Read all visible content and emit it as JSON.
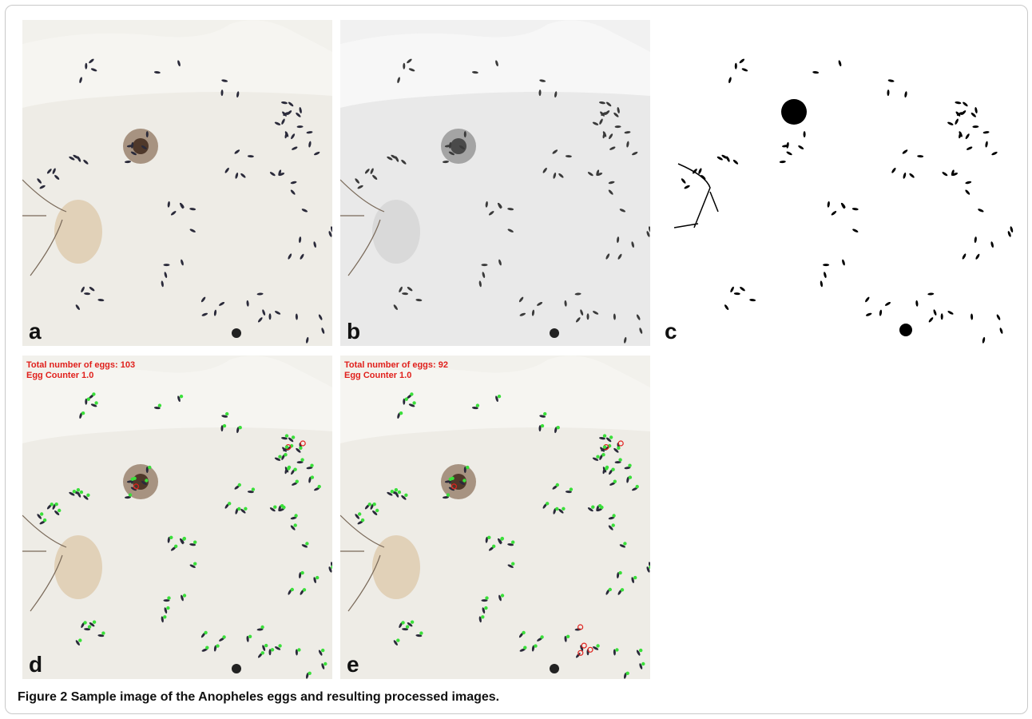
{
  "figure": {
    "label": "Figure 2",
    "caption": "Sample image of the Anopheles eggs and resulting processed images."
  },
  "panels": [
    {
      "id": "a",
      "letter": "a",
      "kind": "color-photo"
    },
    {
      "id": "b",
      "letter": "b",
      "kind": "grayscale"
    },
    {
      "id": "c",
      "letter": "c",
      "kind": "binary"
    },
    {
      "id": "d",
      "letter": "d",
      "kind": "annotated",
      "overlay_line1": "Total number of eggs: 103",
      "overlay_line2": "Egg Counter 1.0"
    },
    {
      "id": "e",
      "letter": "e",
      "kind": "annotated",
      "overlay_line1": "Total number of eggs: 92",
      "overlay_line2": "Egg Counter 1.0"
    }
  ],
  "colors": {
    "overlay_text": "#e0201c",
    "marker_green": "#3adf3a",
    "marker_red": "#e0201c",
    "egg": "#2a2a3a"
  }
}
